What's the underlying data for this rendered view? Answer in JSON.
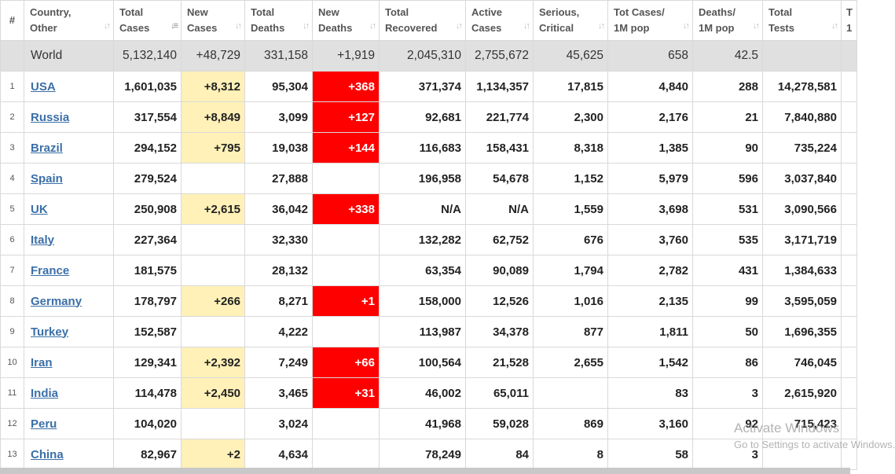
{
  "columns": [
    {
      "key": "num",
      "label": "#"
    },
    {
      "key": "country",
      "label": "Country,\nOther"
    },
    {
      "key": "total_cases",
      "label": "Total\nCases"
    },
    {
      "key": "new_cases",
      "label": "New\nCases"
    },
    {
      "key": "total_deaths",
      "label": "Total\nDeaths"
    },
    {
      "key": "new_deaths",
      "label": "New\nDeaths"
    },
    {
      "key": "total_recovered",
      "label": "Total\nRecovered"
    },
    {
      "key": "active_cases",
      "label": "Active\nCases"
    },
    {
      "key": "serious_critical",
      "label": "Serious,\nCritical"
    },
    {
      "key": "tot_cases_1m",
      "label": "Tot Cases/\n1M pop"
    },
    {
      "key": "deaths_1m",
      "label": "Deaths/\n1M pop"
    },
    {
      "key": "total_tests",
      "label": "Total\nTests"
    },
    {
      "key": "extra",
      "label": "T\n1"
    }
  ],
  "world": {
    "country": "World",
    "total_cases": "5,132,140",
    "new_cases": "+48,729",
    "total_deaths": "331,158",
    "new_deaths": "+1,919",
    "total_recovered": "2,045,310",
    "active_cases": "2,755,672",
    "serious_critical": "45,625",
    "tot_cases_1m": "658",
    "deaths_1m": "42.5",
    "total_tests": "",
    "extra": ""
  },
  "rows": [
    {
      "num": "1",
      "country": "USA",
      "total_cases": "1,601,035",
      "new_cases": "+8,312",
      "total_deaths": "95,304",
      "new_deaths": "+368",
      "total_recovered": "371,374",
      "active_cases": "1,134,357",
      "serious_critical": "17,815",
      "tot_cases_1m": "4,840",
      "deaths_1m": "288",
      "total_tests": "14,278,581"
    },
    {
      "num": "2",
      "country": "Russia",
      "total_cases": "317,554",
      "new_cases": "+8,849",
      "total_deaths": "3,099",
      "new_deaths": "+127",
      "total_recovered": "92,681",
      "active_cases": "221,774",
      "serious_critical": "2,300",
      "tot_cases_1m": "2,176",
      "deaths_1m": "21",
      "total_tests": "7,840,880"
    },
    {
      "num": "3",
      "country": "Brazil",
      "total_cases": "294,152",
      "new_cases": "+795",
      "total_deaths": "19,038",
      "new_deaths": "+144",
      "total_recovered": "116,683",
      "active_cases": "158,431",
      "serious_critical": "8,318",
      "tot_cases_1m": "1,385",
      "deaths_1m": "90",
      "total_tests": "735,224"
    },
    {
      "num": "4",
      "country": "Spain",
      "total_cases": "279,524",
      "new_cases": "",
      "total_deaths": "27,888",
      "new_deaths": "",
      "total_recovered": "196,958",
      "active_cases": "54,678",
      "serious_critical": "1,152",
      "tot_cases_1m": "5,979",
      "deaths_1m": "596",
      "total_tests": "3,037,840"
    },
    {
      "num": "5",
      "country": "UK",
      "total_cases": "250,908",
      "new_cases": "+2,615",
      "total_deaths": "36,042",
      "new_deaths": "+338",
      "total_recovered": "N/A",
      "active_cases": "N/A",
      "serious_critical": "1,559",
      "tot_cases_1m": "3,698",
      "deaths_1m": "531",
      "total_tests": "3,090,566"
    },
    {
      "num": "6",
      "country": "Italy",
      "total_cases": "227,364",
      "new_cases": "",
      "total_deaths": "32,330",
      "new_deaths": "",
      "total_recovered": "132,282",
      "active_cases": "62,752",
      "serious_critical": "676",
      "tot_cases_1m": "3,760",
      "deaths_1m": "535",
      "total_tests": "3,171,719"
    },
    {
      "num": "7",
      "country": "France",
      "total_cases": "181,575",
      "new_cases": "",
      "total_deaths": "28,132",
      "new_deaths": "",
      "total_recovered": "63,354",
      "active_cases": "90,089",
      "serious_critical": "1,794",
      "tot_cases_1m": "2,782",
      "deaths_1m": "431",
      "total_tests": "1,384,633"
    },
    {
      "num": "8",
      "country": "Germany",
      "total_cases": "178,797",
      "new_cases": "+266",
      "total_deaths": "8,271",
      "new_deaths": "+1",
      "total_recovered": "158,000",
      "active_cases": "12,526",
      "serious_critical": "1,016",
      "tot_cases_1m": "2,135",
      "deaths_1m": "99",
      "total_tests": "3,595,059"
    },
    {
      "num": "9",
      "country": "Turkey",
      "total_cases": "152,587",
      "new_cases": "",
      "total_deaths": "4,222",
      "new_deaths": "",
      "total_recovered": "113,987",
      "active_cases": "34,378",
      "serious_critical": "877",
      "tot_cases_1m": "1,811",
      "deaths_1m": "50",
      "total_tests": "1,696,355"
    },
    {
      "num": "10",
      "country": "Iran",
      "total_cases": "129,341",
      "new_cases": "+2,392",
      "total_deaths": "7,249",
      "new_deaths": "+66",
      "total_recovered": "100,564",
      "active_cases": "21,528",
      "serious_critical": "2,655",
      "tot_cases_1m": "1,542",
      "deaths_1m": "86",
      "total_tests": "746,045"
    },
    {
      "num": "11",
      "country": "India",
      "total_cases": "114,478",
      "new_cases": "+2,450",
      "total_deaths": "3,465",
      "new_deaths": "+31",
      "total_recovered": "46,002",
      "active_cases": "65,011",
      "serious_critical": "",
      "tot_cases_1m": "83",
      "deaths_1m": "3",
      "total_tests": "2,615,920"
    },
    {
      "num": "12",
      "country": "Peru",
      "total_cases": "104,020",
      "new_cases": "",
      "total_deaths": "3,024",
      "new_deaths": "",
      "total_recovered": "41,968",
      "active_cases": "59,028",
      "serious_critical": "869",
      "tot_cases_1m": "3,160",
      "deaths_1m": "92",
      "total_tests": "715,423"
    },
    {
      "num": "13",
      "country": "China",
      "total_cases": "82,967",
      "new_cases": "+2",
      "total_deaths": "4,634",
      "new_deaths": "",
      "total_recovered": "78,249",
      "active_cases": "84",
      "serious_critical": "8",
      "tot_cases_1m": "58",
      "deaths_1m": "3",
      "total_tests": ""
    }
  ],
  "colors": {
    "new_cases_bg": "#fff1b8",
    "new_deaths_bg": "#ff0000",
    "link": "#3b6fa8",
    "world_bg": "#e0e0e0"
  },
  "watermark": {
    "title": "Activate Windows",
    "subtitle": "Go to Settings to activate Windows."
  }
}
